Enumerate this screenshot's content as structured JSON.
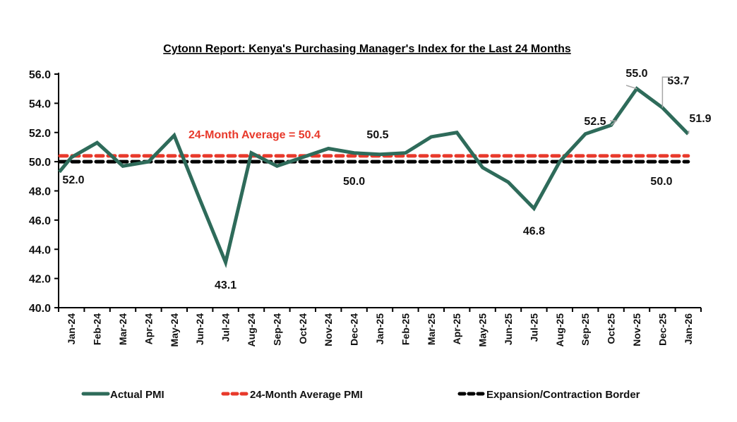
{
  "chart_data": {
    "type": "line",
    "title": "Cytonn Report: Kenya's Purchasing Manager's Index for the Last 24 Months",
    "xlabel": "",
    "ylabel": "",
    "ylim": [
      40.0,
      56.0
    ],
    "yticks": [
      "40.0",
      "42.0",
      "44.0",
      "46.0",
      "48.0",
      "50.0",
      "52.0",
      "54.0",
      "56.0"
    ],
    "ytick_values": [
      40,
      42,
      44,
      46,
      48,
      50,
      52,
      54,
      56
    ],
    "grid": false,
    "categories": [
      "Jan-24",
      "Feb-24",
      "Mar-24",
      "Apr-24",
      "May-24",
      "Jun-24",
      "Jul-24",
      "Aug-24",
      "Sep-24",
      "Oct-24",
      "Nov-24",
      "Dec-24",
      "Jan-25",
      "Feb-25",
      "Mar-25",
      "Apr-25",
      "May-25",
      "Jun-25",
      "Jul-25",
      "Aug-25",
      "Sep-25",
      "Oct-25",
      "Nov-25",
      "Dec-25",
      "Jan-26"
    ],
    "series": [
      {
        "name": "Actual PMI",
        "style": "solid",
        "color": "#2e6b5a",
        "values": [
          50.3,
          51.3,
          49.7,
          50.0,
          51.8,
          47.4,
          43.1,
          50.6,
          49.7,
          50.3,
          50.9,
          50.6,
          50.5,
          50.6,
          51.7,
          52.0,
          49.6,
          48.6,
          46.8,
          50.0,
          51.9,
          52.5,
          55.0,
          53.7,
          51.9
        ]
      },
      {
        "name": "24-Month Average PMI",
        "style": "dashed",
        "color": "#e8392b",
        "constant": 50.4
      },
      {
        "name": "Expansion/Contraction Border",
        "style": "dashed",
        "color": "#000000",
        "constant": 50.0
      }
    ],
    "annotations": [
      {
        "text": "24-Month Average = 50.4",
        "category": "Jul-24",
        "value": 51.9,
        "color": "#e8392b"
      },
      {
        "text": "52.0",
        "category": "Jan-24",
        "value": 48.8
      },
      {
        "text": "43.1",
        "category": "Jul-24",
        "value": 41.6
      },
      {
        "text": "50.5",
        "category": "Jan-25",
        "value": 51.9
      },
      {
        "text": "50.0",
        "category": "Dec-24",
        "value": 48.7
      },
      {
        "text": "46.8",
        "category": "Jul-25",
        "value": 45.3
      },
      {
        "text": "52.5",
        "category": "Sep-25",
        "value": 52.8,
        "leader_to": "Oct-25"
      },
      {
        "text": "55.0",
        "category": "Nov-25",
        "value": 56.1,
        "leader_to": "Nov-25"
      },
      {
        "text": "53.7",
        "category": "Dec-25",
        "value": 55.6,
        "leader_to": "Dec-25"
      },
      {
        "text": "51.9",
        "category": "Jan-26",
        "value": 53.0,
        "leader_to": "Jan-26"
      },
      {
        "text": "50.0",
        "category": "Dec-25",
        "value": 48.7
      }
    ],
    "legend": {
      "position": "bottom",
      "items": [
        "Actual PMI",
        "24-Month Average PMI",
        "Expansion/Contraction Border"
      ]
    }
  }
}
